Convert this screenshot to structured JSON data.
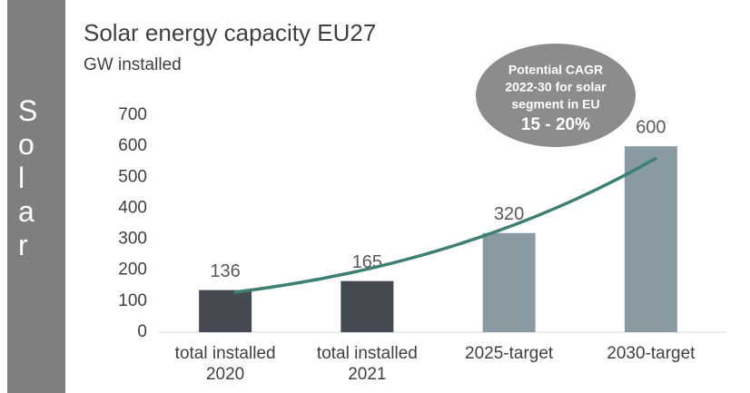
{
  "sidebar_label": "Solar",
  "chart_data": {
    "type": "bar",
    "title": "Solar energy capacity EU27",
    "subtitle": "GW installed",
    "categories": [
      "total installed 2020",
      "total installed 2021",
      "2025-target",
      "2030-target"
    ],
    "values": [
      136,
      165,
      320,
      600
    ],
    "colors": [
      "#454a52",
      "#454a52",
      "#8a9aa3",
      "#8a9aa3"
    ],
    "ylim": [
      0,
      700
    ],
    "yticks": [
      0,
      100,
      200,
      300,
      400,
      500,
      600,
      700
    ],
    "annotation": [
      "Potential CAGR",
      "2022-30 for solar",
      "segment in EU",
      "15 - 20%"
    ]
  }
}
